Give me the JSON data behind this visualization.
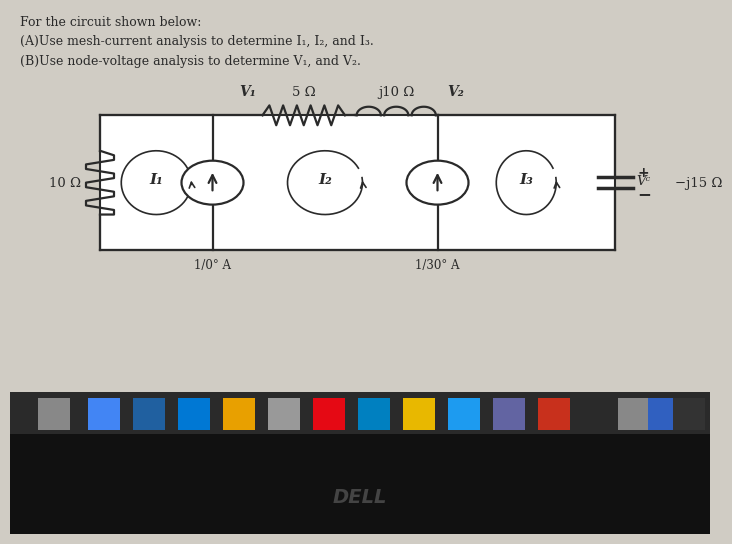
{
  "bg_color": "#d0ccc4",
  "circuit_bg": "#f5f4f0",
  "circuit_line": "#2a2a2a",
  "title_lines": [
    "For the circuit shown below:",
    "(A)Use mesh-current analysis to determine I₁, I₂, and I₃.",
    "(B)Use node-voltage analysis to determine V₁, and V₂."
  ],
  "resistor_10": "10 Ω",
  "resistor_5": "5 Ω",
  "inductor_j10": "j10 Ω",
  "capacitor_j15": "−j15 Ω",
  "source_1": "1/0° A",
  "source_2": "1/30° A",
  "label_V1": "V₁",
  "label_V2": "V₂",
  "label_Vc": "Vᶜ",
  "label_I1": "I₁",
  "label_I2": "I₂",
  "label_I3": "I₃",
  "taskbar_color": "#2a2a2a",
  "dell_color": "#444444",
  "dell_text": "DELL",
  "bottom_black": "#111111",
  "icon_colors": [
    "#888888",
    "#4285f4",
    "#2060c0",
    "#0078d4",
    "#e8a000",
    "#999999",
    "#e50914",
    "#0080d0",
    "#e8b800",
    "#1d9bf0",
    "#6264a2",
    "#cc0000",
    "#aaaaaa",
    "#333333"
  ]
}
